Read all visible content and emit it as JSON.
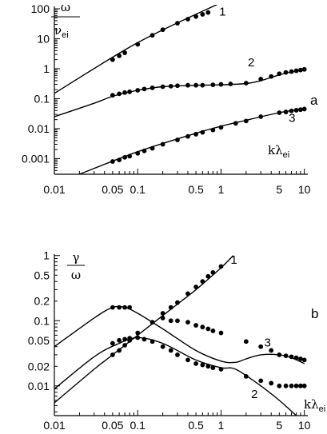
{
  "chart_data": [
    {
      "type": "scatter",
      "panel_letter": "a",
      "ylabel": {
        "numerator": "ω",
        "denominator": "ν",
        "denominator_sub": "ei"
      },
      "xlabel": {
        "main": "kλ",
        "sub": "ei"
      },
      "x_scale": "log",
      "y_scale": "log",
      "xlim": [
        0.01,
        11
      ],
      "ylim": [
        0.0003,
        120
      ],
      "grid": false,
      "x_ticks": [
        0.01,
        0.05,
        0.1,
        0.5,
        1,
        5,
        10
      ],
      "x_tick_labels": [
        "0.01",
        "0.05",
        "0.1",
        "0.5",
        "1",
        "5",
        "10"
      ],
      "y_ticks": [
        0.001,
        0.01,
        0.1,
        1,
        10,
        100
      ],
      "y_tick_labels": [
        "0.001",
        "0.01",
        "0.1",
        "1",
        "10",
        "100"
      ],
      "series": [
        {
          "name": "1",
          "curve": {
            "x": [
              0.01,
              0.1,
              1
            ],
            "y": [
              0.15,
              7.4,
              160
            ]
          },
          "points": {
            "x": [
              0.05,
              0.06,
              0.07,
              0.1,
              0.15,
              0.2,
              0.3,
              0.4,
              0.5,
              0.6,
              0.7
            ],
            "y": [
              2.0,
              2.7,
              3.4,
              6.5,
              13,
              20,
              33,
              45,
              55,
              65,
              75
            ]
          }
        },
        {
          "name": "2",
          "curve": {
            "x": [
              0.01,
              0.03,
              0.05,
              0.1,
              0.2,
              0.5,
              1,
              2,
              3,
              5,
              7,
              10
            ],
            "y": [
              0.025,
              0.07,
              0.12,
              0.19,
              0.25,
              0.28,
              0.29,
              0.32,
              0.4,
              0.62,
              0.78,
              0.9
            ]
          },
          "points": {
            "x": [
              0.05,
              0.06,
              0.07,
              0.08,
              0.1,
              0.12,
              0.15,
              0.2,
              0.25,
              0.3,
              0.4,
              0.5,
              0.6,
              0.8,
              1,
              1.3,
              2,
              3,
              4,
              5,
              6,
              7,
              8,
              9,
              10
            ],
            "y": [
              0.13,
              0.145,
              0.16,
              0.17,
              0.19,
              0.21,
              0.23,
              0.25,
              0.26,
              0.27,
              0.28,
              0.28,
              0.28,
              0.29,
              0.3,
              0.31,
              0.33,
              0.45,
              0.55,
              0.68,
              0.75,
              0.8,
              0.85,
              0.9,
              0.95
            ]
          }
        },
        {
          "name": "3",
          "curve": {
            "x": [
              0.02,
              0.1,
              0.5,
              1,
              2,
              5,
              10
            ],
            "y": [
              0.0003,
              0.0017,
              0.007,
              0.012,
              0.019,
              0.034,
              0.047
            ]
          },
          "points": {
            "x": [
              0.05,
              0.06,
              0.07,
              0.08,
              0.1,
              0.12,
              0.15,
              0.2,
              0.3,
              0.4,
              0.5,
              0.6,
              0.8,
              1,
              1.5,
              2,
              3,
              5,
              6,
              7,
              8,
              9,
              10
            ],
            "y": [
              0.0008,
              0.0009,
              0.0011,
              0.0012,
              0.0015,
              0.0018,
              0.0022,
              0.003,
              0.0042,
              0.0055,
              0.0065,
              0.0075,
              0.009,
              0.011,
              0.015,
              0.018,
              0.025,
              0.034,
              0.036,
              0.039,
              0.041,
              0.043,
              0.045
            ]
          }
        }
      ]
    },
    {
      "type": "scatter",
      "panel_letter": "b",
      "ylabel": {
        "numerator": "γ",
        "denominator": "ω"
      },
      "xlabel": {
        "main": "kλ",
        "sub": "ei"
      },
      "x_scale": "log",
      "y_scale": "log",
      "xlim": [
        0.01,
        11
      ],
      "ylim": [
        0.0035,
        1.05
      ],
      "grid": false,
      "x_ticks": [
        0.01,
        0.05,
        0.1,
        0.5,
        1,
        5,
        10
      ],
      "x_tick_labels": [
        "0.01",
        "0.05",
        "0.1",
        "0.5",
        "1",
        "5",
        "10"
      ],
      "y_ticks": [
        0.01,
        0.02,
        0.05,
        0.1,
        0.2,
        0.5,
        1
      ],
      "y_tick_labels": [
        "0.01",
        "0.02",
        "0.05",
        "0.1",
        "0.2",
        "0.5",
        "1"
      ],
      "series": [
        {
          "name": "1",
          "curve": {
            "x": [
              0.01,
              0.03,
              0.05,
              0.1,
              0.3,
              0.5,
              1,
              1.4
            ],
            "y": [
              0.0055,
              0.018,
              0.03,
              0.06,
              0.18,
              0.3,
              0.65,
              1.0
            ]
          },
          "points": {
            "x": [
              0.05,
              0.06,
              0.07,
              0.08,
              0.1,
              0.15,
              0.2,
              0.25,
              0.3,
              0.4,
              0.5,
              0.6,
              0.7,
              0.8,
              1.0
            ],
            "y": [
              0.03,
              0.035,
              0.042,
              0.05,
              0.065,
              0.095,
              0.13,
              0.16,
              0.19,
              0.26,
              0.33,
              0.4,
              0.48,
              0.55,
              0.68
            ]
          }
        },
        {
          "name": "2",
          "curve": {
            "x": [
              0.01,
              0.03,
              0.06,
              0.1,
              0.2,
              0.5,
              1,
              1.5,
              3,
              5,
              8
            ],
            "y": [
              0.009,
              0.028,
              0.045,
              0.055,
              0.045,
              0.025,
              0.019,
              0.018,
              0.01,
              0.006,
              0.0035
            ]
          },
          "points": {
            "x": [
              0.05,
              0.06,
              0.07,
              0.08,
              0.1,
              0.12,
              0.15,
              0.2,
              0.25,
              0.3,
              0.4,
              0.5,
              0.6,
              0.7,
              0.8,
              1.0,
              2,
              3,
              4,
              5,
              6,
              7,
              8,
              9,
              10
            ],
            "y": [
              0.045,
              0.05,
              0.052,
              0.054,
              0.055,
              0.052,
              0.048,
              0.04,
              0.035,
              0.03,
              0.025,
              0.022,
              0.021,
              0.02,
              0.019,
              0.018,
              0.014,
              0.012,
              0.011,
              0.01,
              0.01,
              0.01,
              0.01,
              0.01,
              0.01
            ]
          }
        },
        {
          "name": "3",
          "curve": {
            "x": [
              0.01,
              0.03,
              0.05,
              0.07,
              0.1,
              0.2,
              0.5,
              1,
              1.5,
              2,
              3,
              5,
              7,
              10
            ],
            "y": [
              0.04,
              0.11,
              0.16,
              0.16,
              0.13,
              0.075,
              0.035,
              0.024,
              0.023,
              0.026,
              0.03,
              0.03,
              0.027,
              0.022
            ]
          },
          "points": {
            "x": [
              0.05,
              0.06,
              0.07,
              0.08,
              0.2,
              0.25,
              0.3,
              0.4,
              0.5,
              0.6,
              0.7,
              0.8,
              1.0,
              2,
              3,
              4,
              5,
              6,
              7,
              8,
              9,
              10
            ],
            "y": [
              0.16,
              0.16,
              0.16,
              0.16,
              0.11,
              0.1,
              0.1,
              0.095,
              0.085,
              0.08,
              0.075,
              0.07,
              0.065,
              0.048,
              0.04,
              0.035,
              0.03,
              0.029,
              0.028,
              0.027,
              0.026,
              0.025
            ]
          }
        }
      ]
    }
  ]
}
